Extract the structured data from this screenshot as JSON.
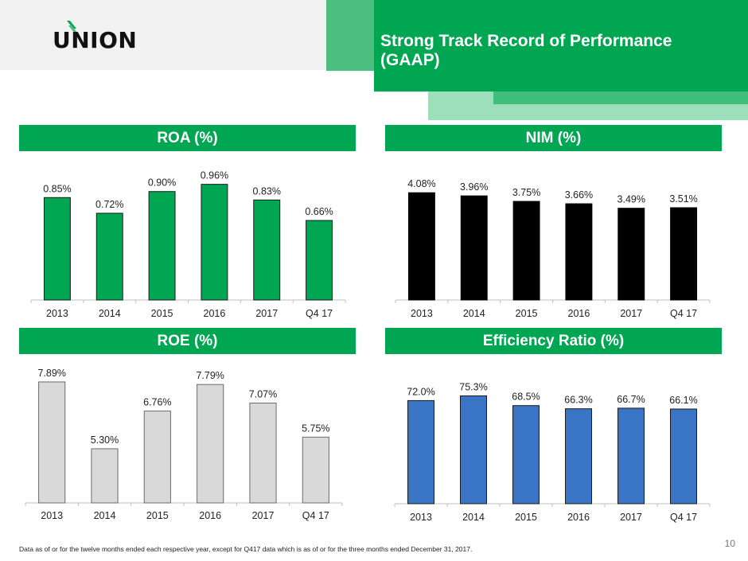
{
  "header": {
    "logo_text": "UNION",
    "title": "Strong Track Record of Performance (GAAP)",
    "title_line1": "Strong Track Record of Performance",
    "title_line2": "(GAAP)"
  },
  "colors": {
    "brand_green": "#00a651",
    "roa_bar": "#00a651",
    "nim_bar": "#000000",
    "roe_bar": "#d9d9d9",
    "efficiency_bar": "#3a74c4"
  },
  "chart_data": [
    {
      "id": "roa",
      "type": "bar",
      "title": "ROA (%)",
      "categories": [
        "2013",
        "2014",
        "2015",
        "2016",
        "2017",
        "Q4 17"
      ],
      "values": [
        0.85,
        0.72,
        0.9,
        0.96,
        0.83,
        0.66
      ],
      "data_labels": [
        "0.85%",
        "0.72%",
        "0.90%",
        "0.96%",
        "0.83%",
        "0.66%"
      ],
      "xlabel": "",
      "ylabel": "",
      "ylim": [
        0,
        1.05
      ],
      "grid": false,
      "legend": "none",
      "bar_color": "#00a651"
    },
    {
      "id": "nim",
      "type": "bar",
      "title": "NIM (%)",
      "categories": [
        "2013",
        "2014",
        "2015",
        "2016",
        "2017",
        "Q4 17"
      ],
      "values": [
        4.08,
        3.96,
        3.75,
        3.66,
        3.49,
        3.51
      ],
      "data_labels": [
        "4.08%",
        "3.96%",
        "3.75%",
        "3.66%",
        "3.49%",
        "3.51%"
      ],
      "xlabel": "",
      "ylabel": "",
      "ylim": [
        0,
        4.6
      ],
      "grid": false,
      "legend": "none",
      "bar_color": "#000000"
    },
    {
      "id": "roe",
      "type": "bar",
      "title": "ROE (%)",
      "categories": [
        "2013",
        "2014",
        "2015",
        "2016",
        "2017",
        "Q4 17"
      ],
      "values": [
        7.89,
        5.3,
        6.76,
        7.79,
        7.07,
        5.75
      ],
      "data_labels": [
        "7.89%",
        "5.30%",
        "6.76%",
        "7.79%",
        "7.07%",
        "5.75%"
      ],
      "xlabel": "",
      "ylabel": "",
      "ylim": [
        3.2,
        7.95
      ],
      "grid": false,
      "legend": "none",
      "bar_color": "#d9d9d9"
    },
    {
      "id": "efficiency",
      "type": "bar",
      "title": "Efficiency Ratio (%)",
      "categories": [
        "2013",
        "2014",
        "2015",
        "2016",
        "2017",
        "Q4 17"
      ],
      "values": [
        72.0,
        75.3,
        68.5,
        66.3,
        66.7,
        66.1
      ],
      "data_labels": [
        "72.0%",
        "75.3%",
        "68.5%",
        "66.3%",
        "66.7%",
        "66.1%"
      ],
      "xlabel": "",
      "ylabel": "",
      "ylim": [
        0,
        85
      ],
      "grid": false,
      "legend": "none",
      "bar_color": "#3a74c4"
    }
  ],
  "footer": {
    "footnote": "Data as of or for the twelve months ended each respective year, except for Q417 data which is as of or for the three months ended December 31, 2017.",
    "page_number": "10"
  }
}
